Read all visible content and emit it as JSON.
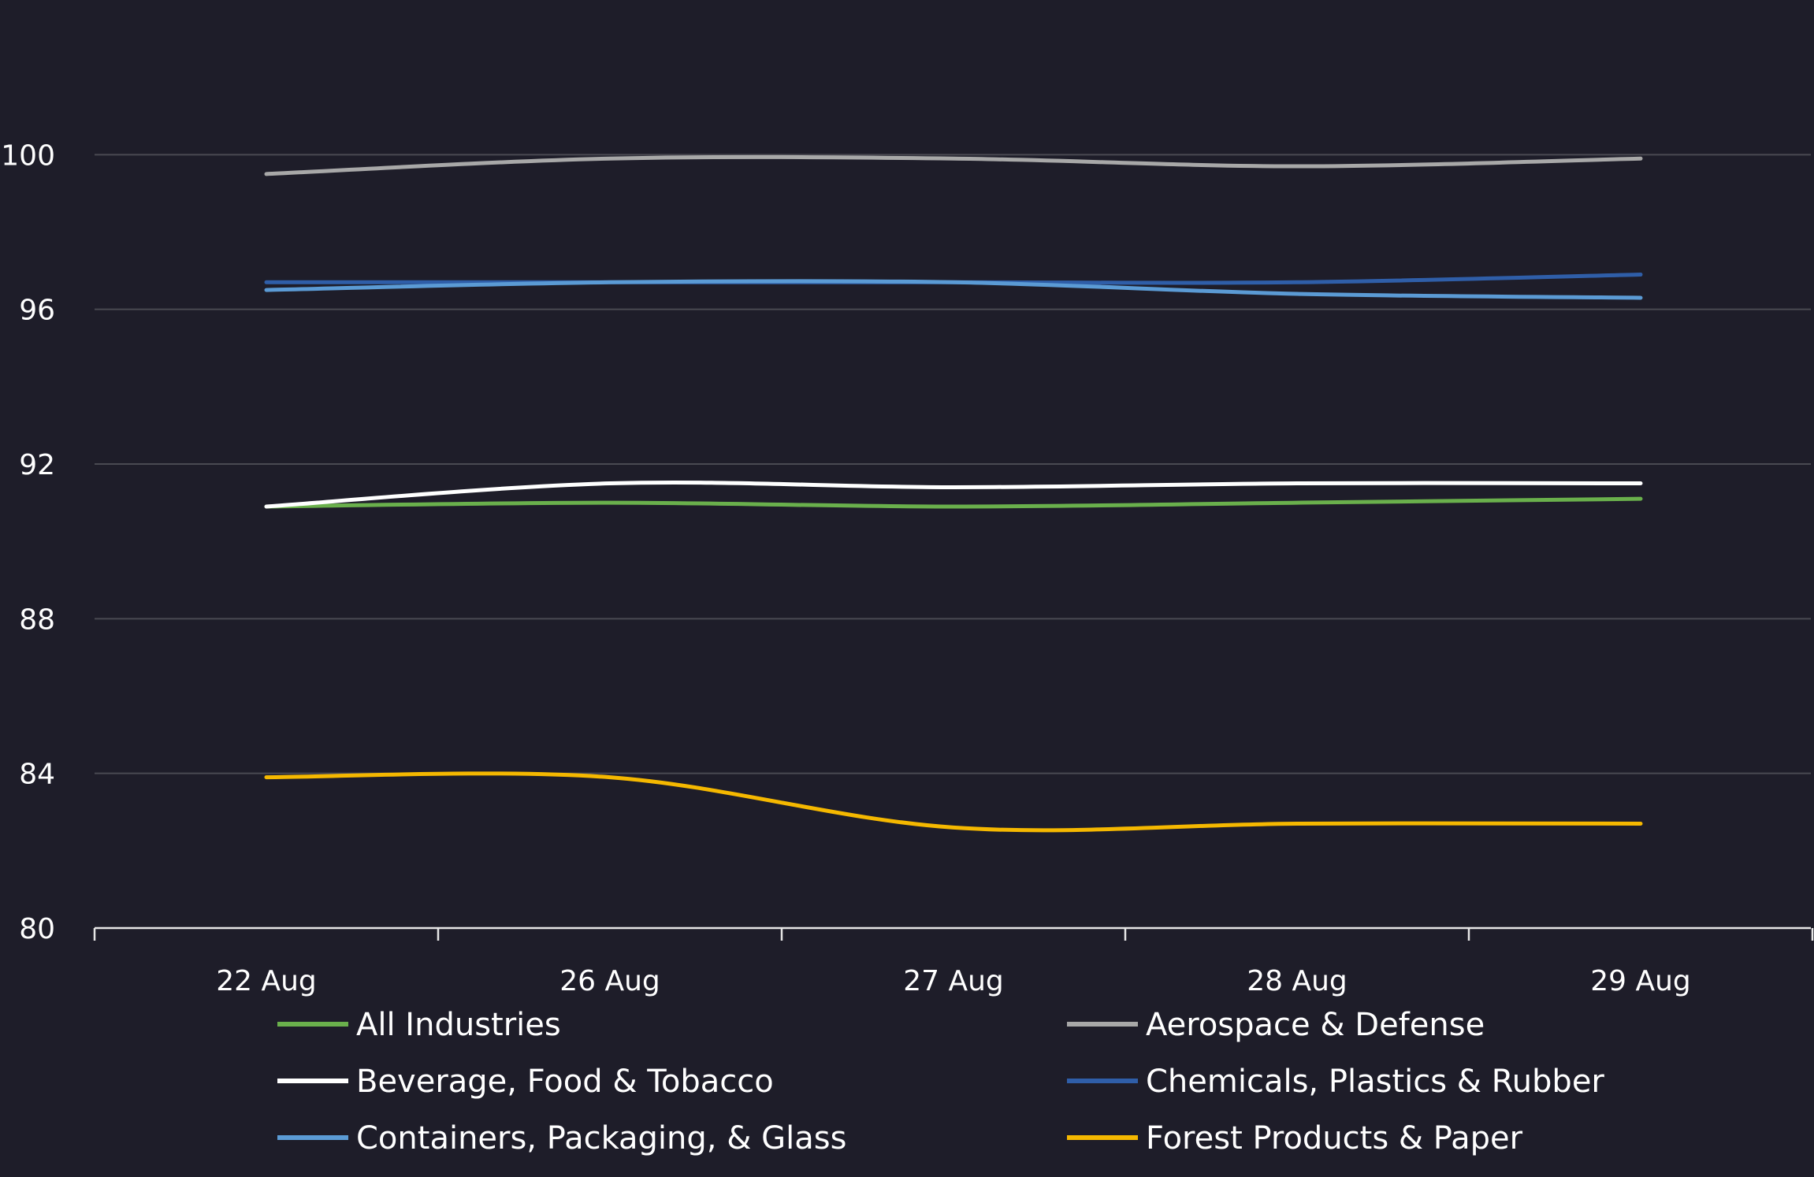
{
  "chart_data": {
    "type": "line",
    "title": "",
    "xlabel": "",
    "ylabel": "",
    "categories": [
      "22 Aug",
      "26 Aug",
      "27 Aug",
      "28 Aug",
      "29 Aug"
    ],
    "ylim": [
      80,
      104
    ],
    "yticks": [
      80,
      84,
      88,
      92,
      96,
      100
    ],
    "grid": true,
    "legend_placement": "bottom",
    "series": [
      {
        "name": "All Industries",
        "color": "#6ab04c",
        "values": [
          90.9,
          91.0,
          90.9,
          91.0,
          91.1
        ]
      },
      {
        "name": "Aerospace & Defense",
        "color": "#a8a8a8",
        "values": [
          99.5,
          99.9,
          99.9,
          99.7,
          99.9
        ]
      },
      {
        "name": "Beverage, Food & Tobacco",
        "color": "#ffffff",
        "values": [
          90.9,
          91.5,
          91.4,
          91.5,
          91.5
        ]
      },
      {
        "name": "Chemicals, Plastics & Rubber",
        "color": "#2f5ea8",
        "values": [
          96.7,
          96.7,
          96.7,
          96.7,
          96.9
        ]
      },
      {
        "name": "Containers, Packaging, & Glass",
        "color": "#5b9bd5",
        "values": [
          96.5,
          96.7,
          96.7,
          96.4,
          96.3
        ]
      },
      {
        "name": "Forest Products & Paper",
        "color": "#f5b800",
        "values": [
          83.9,
          83.9,
          82.6,
          82.7,
          82.7
        ]
      }
    ]
  }
}
